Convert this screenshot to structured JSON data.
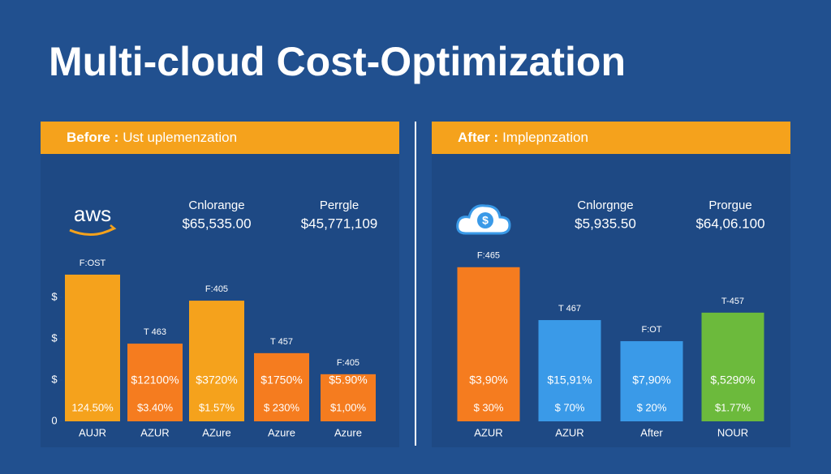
{
  "title": "Multi-cloud Cost-Optimization",
  "chart_data": [
    {
      "type": "bar",
      "header_bold": "Before :",
      "header_rest": "Ust uplemenzation",
      "logo": "aws",
      "stats": [
        {
          "label": "Cnlorange",
          "value": "$65,535.00"
        },
        {
          "label": "Perrgle",
          "value": "$45,771,109"
        }
      ],
      "categories": [
        "AUJR",
        "AZUR",
        "AZure",
        "Azure",
        "Azure"
      ],
      "values": [
        3.55,
        1.88,
        2.92,
        1.65,
        1.14
      ],
      "colors": [
        "#f5a21c",
        "#f57c1f",
        "#f5a21c",
        "#f57c1f",
        "#f57c1f"
      ],
      "top_labels": [
        "F:OST",
        "T 463",
        "F:405",
        "T 457",
        "F:405"
      ],
      "mid_labels": [
        null,
        "$12100%",
        "$3720%",
        "$1750%",
        "$5.90%"
      ],
      "bottom_labels": [
        "124.50%",
        "$3.40%",
        "$1.57%",
        "$ 230%",
        "$1,00%"
      ],
      "ylim": [
        0,
        4
      ],
      "yticks": [
        {
          "value": 0,
          "label": "0"
        },
        {
          "value": 1,
          "label": "$"
        },
        {
          "value": 2,
          "label": "$"
        },
        {
          "value": 3,
          "label": "$"
        }
      ]
    },
    {
      "type": "bar",
      "header_bold": "After :",
      "header_rest": "Implepnzation",
      "stats": [
        {
          "label": "Cnlorgnge",
          "value": "$5,935.50"
        },
        {
          "label": "Prorgue",
          "value": "$64,06.100"
        }
      ],
      "categories": [
        "AZUR",
        "AZUR",
        "After",
        "NOUR"
      ],
      "values": [
        3.73,
        2.45,
        1.94,
        2.63
      ],
      "colors": [
        "#f57c1f",
        "#3a9ae8",
        "#3a9ae8",
        "#6cba3c"
      ],
      "top_labels": [
        "F:465",
        "T 467",
        "F:OT",
        "T-457"
      ],
      "mid_labels": [
        "$3,90%",
        "$15,91%",
        "$7,90%",
        "$,5290%"
      ],
      "bottom_labels": [
        "$ 30%",
        "$ 70%",
        "$ 20%",
        "$1.77%"
      ],
      "ylim": [
        0,
        4
      ]
    }
  ]
}
